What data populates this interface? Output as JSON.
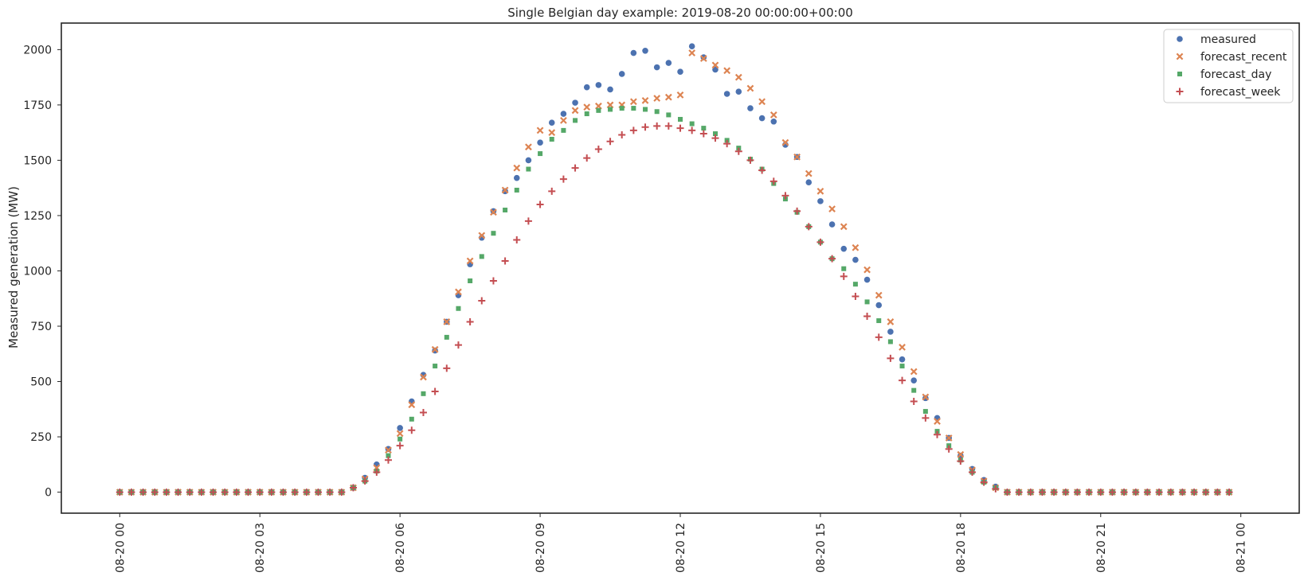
{
  "chart_data": {
    "type": "scatter",
    "title": "Single Belgian day example: 2019-08-20 00:00:00+00:00",
    "xlabel": "",
    "ylabel": "Measured generation (MW)",
    "ylim": [
      -95,
      2120
    ],
    "xlim": [
      "2019-08-19 22:45",
      "2019-08-21 01:15"
    ],
    "yticks": [
      0,
      250,
      500,
      750,
      1000,
      1250,
      1500,
      1750,
      2000
    ],
    "xticks": [
      {
        "value": "2019-08-20 00:00",
        "label": "08-20 00"
      },
      {
        "value": "2019-08-20 03:00",
        "label": "08-20 03"
      },
      {
        "value": "2019-08-20 06:00",
        "label": "08-20 06"
      },
      {
        "value": "2019-08-20 09:00",
        "label": "08-20 09"
      },
      {
        "value": "2019-08-20 12:00",
        "label": "08-20 12"
      },
      {
        "value": "2019-08-20 15:00",
        "label": "08-20 15"
      },
      {
        "value": "2019-08-20 18:00",
        "label": "08-20 18"
      },
      {
        "value": "2019-08-20 21:00",
        "label": "08-20 21"
      },
      {
        "value": "2019-08-21 00:00",
        "label": "08-21 00"
      }
    ],
    "grid": false,
    "legend_position": "top-right",
    "x_start": "2019-08-20 00:00",
    "x_step": "15min",
    "x": [
      "2019-08-20 00:00",
      "2019-08-20 00:15",
      "2019-08-20 00:30",
      "2019-08-20 00:45",
      "2019-08-20 01:00",
      "2019-08-20 01:15",
      "2019-08-20 01:30",
      "2019-08-20 01:45",
      "2019-08-20 02:00",
      "2019-08-20 02:15",
      "2019-08-20 02:30",
      "2019-08-20 02:45",
      "2019-08-20 03:00",
      "2019-08-20 03:15",
      "2019-08-20 03:30",
      "2019-08-20 03:45",
      "2019-08-20 04:00",
      "2019-08-20 04:15",
      "2019-08-20 04:30",
      "2019-08-20 04:45",
      "2019-08-20 05:00",
      "2019-08-20 05:15",
      "2019-08-20 05:30",
      "2019-08-20 05:45",
      "2019-08-20 06:00",
      "2019-08-20 06:15",
      "2019-08-20 06:30",
      "2019-08-20 06:45",
      "2019-08-20 07:00",
      "2019-08-20 07:15",
      "2019-08-20 07:30",
      "2019-08-20 07:45",
      "2019-08-20 08:00",
      "2019-08-20 08:15",
      "2019-08-20 08:30",
      "2019-08-20 08:45",
      "2019-08-20 09:00",
      "2019-08-20 09:15",
      "2019-08-20 09:30",
      "2019-08-20 09:45",
      "2019-08-20 10:00",
      "2019-08-20 10:15",
      "2019-08-20 10:30",
      "2019-08-20 10:45",
      "2019-08-20 11:00",
      "2019-08-20 11:15",
      "2019-08-20 11:30",
      "2019-08-20 11:45",
      "2019-08-20 12:00",
      "2019-08-20 12:15",
      "2019-08-20 12:30",
      "2019-08-20 12:45",
      "2019-08-20 13:00",
      "2019-08-20 13:15",
      "2019-08-20 13:30",
      "2019-08-20 13:45",
      "2019-08-20 14:00",
      "2019-08-20 14:15",
      "2019-08-20 14:30",
      "2019-08-20 14:45",
      "2019-08-20 15:00",
      "2019-08-20 15:15",
      "2019-08-20 15:30",
      "2019-08-20 15:45",
      "2019-08-20 16:00",
      "2019-08-20 16:15",
      "2019-08-20 16:30",
      "2019-08-20 16:45",
      "2019-08-20 17:00",
      "2019-08-20 17:15",
      "2019-08-20 17:30",
      "2019-08-20 17:45",
      "2019-08-20 18:00",
      "2019-08-20 18:15",
      "2019-08-20 18:30",
      "2019-08-20 18:45",
      "2019-08-20 19:00",
      "2019-08-20 19:15",
      "2019-08-20 19:30",
      "2019-08-20 19:45",
      "2019-08-20 20:00",
      "2019-08-20 20:15",
      "2019-08-20 20:30",
      "2019-08-20 20:45",
      "2019-08-20 21:00",
      "2019-08-20 21:15",
      "2019-08-20 21:30",
      "2019-08-20 21:45",
      "2019-08-20 22:00",
      "2019-08-20 22:15",
      "2019-08-20 22:30",
      "2019-08-20 22:45",
      "2019-08-20 23:00",
      "2019-08-20 23:15",
      "2019-08-20 23:30",
      "2019-08-20 23:45"
    ],
    "series": [
      {
        "name": "measured",
        "marker": "circle",
        "color": "#4c72b0",
        "values": [
          0,
          0,
          0,
          0,
          0,
          0,
          0,
          0,
          0,
          0,
          0,
          0,
          0,
          0,
          0,
          0,
          0,
          0,
          0,
          0,
          20,
          65,
          125,
          195,
          290,
          410,
          530,
          640,
          770,
          890,
          1030,
          1150,
          1270,
          1360,
          1420,
          1500,
          1580,
          1670,
          1710,
          1760,
          1830,
          1840,
          1820,
          1890,
          1985,
          1995,
          1920,
          1940,
          1900,
          2015,
          1965,
          1910,
          1800,
          1810,
          1735,
          1690,
          1675,
          1570,
          1515,
          1400,
          1315,
          1210,
          1100,
          1050,
          960,
          845,
          725,
          600,
          505,
          425,
          335,
          245,
          165,
          105,
          55,
          25,
          0,
          0,
          0,
          0,
          0,
          0,
          0,
          0,
          0,
          0,
          0,
          0,
          0,
          0,
          0,
          0,
          0,
          0,
          0,
          0
        ]
      },
      {
        "name": "forecast_recent",
        "marker": "x",
        "color": "#dd8452",
        "values": [
          0,
          0,
          0,
          0,
          0,
          0,
          0,
          0,
          0,
          0,
          0,
          0,
          0,
          0,
          0,
          0,
          0,
          0,
          0,
          0,
          20,
          60,
          110,
          190,
          265,
          395,
          520,
          645,
          770,
          905,
          1045,
          1160,
          1265,
          1365,
          1465,
          1560,
          1635,
          1625,
          1680,
          1725,
          1740,
          1745,
          1750,
          1750,
          1765,
          1770,
          1780,
          1785,
          1795,
          1985,
          1960,
          1930,
          1905,
          1875,
          1825,
          1765,
          1705,
          1580,
          1515,
          1440,
          1360,
          1280,
          1200,
          1105,
          1005,
          890,
          770,
          655,
          545,
          430,
          320,
          245,
          170,
          100,
          50,
          20,
          0,
          0,
          0,
          0,
          0,
          0,
          0,
          0,
          0,
          0,
          0,
          0,
          0,
          0,
          0,
          0,
          0,
          0,
          0,
          0
        ]
      },
      {
        "name": "forecast_day",
        "marker": "square",
        "color": "#55a868",
        "values": [
          0,
          0,
          0,
          0,
          0,
          0,
          0,
          0,
          0,
          0,
          0,
          0,
          0,
          0,
          0,
          0,
          0,
          0,
          0,
          0,
          20,
          50,
          95,
          165,
          240,
          330,
          445,
          570,
          700,
          830,
          955,
          1065,
          1170,
          1275,
          1365,
          1460,
          1530,
          1595,
          1635,
          1680,
          1710,
          1725,
          1730,
          1735,
          1735,
          1730,
          1720,
          1705,
          1685,
          1665,
          1645,
          1620,
          1590,
          1555,
          1505,
          1460,
          1395,
          1325,
          1265,
          1200,
          1130,
          1055,
          1010,
          940,
          860,
          775,
          680,
          570,
          460,
          365,
          275,
          210,
          145,
          90,
          45,
          20,
          0,
          0,
          0,
          0,
          0,
          0,
          0,
          0,
          0,
          0,
          0,
          0,
          0,
          0,
          0,
          0,
          0,
          0,
          0,
          0
        ]
      },
      {
        "name": "forecast_week",
        "marker": "plus",
        "color": "#c44e52",
        "values": [
          0,
          0,
          0,
          0,
          0,
          0,
          0,
          0,
          0,
          0,
          0,
          0,
          0,
          0,
          0,
          0,
          0,
          0,
          0,
          0,
          20,
          50,
          90,
          145,
          210,
          280,
          360,
          455,
          560,
          665,
          770,
          865,
          955,
          1045,
          1140,
          1225,
          1300,
          1360,
          1415,
          1465,
          1510,
          1550,
          1585,
          1615,
          1635,
          1650,
          1655,
          1655,
          1645,
          1635,
          1620,
          1600,
          1575,
          1540,
          1500,
          1455,
          1405,
          1340,
          1270,
          1200,
          1130,
          1055,
          975,
          885,
          795,
          700,
          605,
          505,
          410,
          335,
          260,
          195,
          140,
          90,
          45,
          15,
          0,
          0,
          0,
          0,
          0,
          0,
          0,
          0,
          0,
          0,
          0,
          0,
          0,
          0,
          0,
          0,
          0,
          0,
          0,
          0
        ]
      }
    ]
  }
}
